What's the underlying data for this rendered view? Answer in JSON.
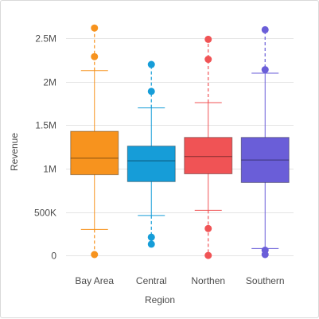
{
  "chart_data": {
    "type": "box",
    "xlabel": "Region",
    "ylabel": "Revenue",
    "ylim": [
      -100000,
      2700000
    ],
    "yticks": [
      {
        "value": 0,
        "label": "0"
      },
      {
        "value": 500000,
        "label": "500K"
      },
      {
        "value": 1000000,
        "label": "1M"
      },
      {
        "value": 1500000,
        "label": "1.5M"
      },
      {
        "value": 2000000,
        "label": "2M"
      },
      {
        "value": 2500000,
        "label": "2.5M"
      }
    ],
    "grid": true,
    "legend": "none",
    "categories": [
      "Bay Area",
      "Central",
      "Northen",
      "Southern"
    ],
    "boxes": [
      {
        "category": "Bay Area",
        "color": "#f7931e",
        "whisker_low": 300000,
        "q1": 930000,
        "median": 1120000,
        "q3": 1430000,
        "whisker_high": 2130000,
        "outliers": [
          2620000,
          2290000,
          10000
        ]
      },
      {
        "category": "Central",
        "color": "#169dd8",
        "whisker_low": 460000,
        "q1": 850000,
        "median": 1090000,
        "q3": 1260000,
        "whisker_high": 1700000,
        "outliers": [
          2200000,
          1890000,
          210000,
          130000
        ]
      },
      {
        "category": "Northen",
        "color": "#f05355",
        "whisker_low": 520000,
        "q1": 940000,
        "median": 1140000,
        "q3": 1360000,
        "whisker_high": 1760000,
        "outliers": [
          2490000,
          2260000,
          310000,
          0
        ]
      },
      {
        "category": "Southern",
        "color": "#6a5ed8",
        "whisker_low": 80000,
        "q1": 840000,
        "median": 1100000,
        "q3": 1360000,
        "whisker_high": 2100000,
        "outliers": [
          2600000,
          2140000,
          60000,
          10000
        ]
      }
    ]
  }
}
